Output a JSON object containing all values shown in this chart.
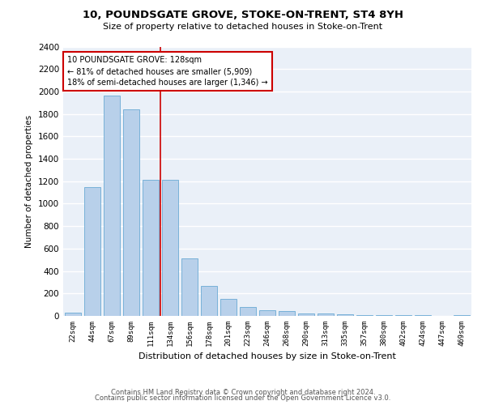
{
  "title": "10, POUNDSGATE GROVE, STOKE-ON-TRENT, ST4 8YH",
  "subtitle": "Size of property relative to detached houses in Stoke-on-Trent",
  "xlabel": "Distribution of detached houses by size in Stoke-on-Trent",
  "ylabel": "Number of detached properties",
  "categories": [
    "22sqm",
    "44sqm",
    "67sqm",
    "89sqm",
    "111sqm",
    "134sqm",
    "156sqm",
    "178sqm",
    "201sqm",
    "223sqm",
    "246sqm",
    "268sqm",
    "290sqm",
    "313sqm",
    "335sqm",
    "357sqm",
    "380sqm",
    "402sqm",
    "424sqm",
    "447sqm",
    "469sqm"
  ],
  "values": [
    30,
    1150,
    1960,
    1840,
    1210,
    1210,
    515,
    265,
    155,
    80,
    50,
    42,
    25,
    20,
    15,
    10,
    8,
    7,
    5,
    3,
    5
  ],
  "bar_color": "#b8d0ea",
  "bar_edge_color": "#6aaad4",
  "background_color": "#eaf0f8",
  "grid_color": "#ffffff",
  "property_label": "10 POUNDSGATE GROVE: 128sqm",
  "annotation_line1": "← 81% of detached houses are smaller (5,909)",
  "annotation_line2": "18% of semi-detached houses are larger (1,346) →",
  "vline_color": "#cc0000",
  "vline_position": 4.5,
  "footer1": "Contains HM Land Registry data © Crown copyright and database right 2024.",
  "footer2": "Contains public sector information licensed under the Open Government Licence v3.0.",
  "ylim": [
    0,
    2400
  ],
  "yticks": [
    0,
    200,
    400,
    600,
    800,
    1000,
    1200,
    1400,
    1600,
    1800,
    2000,
    2200,
    2400
  ]
}
